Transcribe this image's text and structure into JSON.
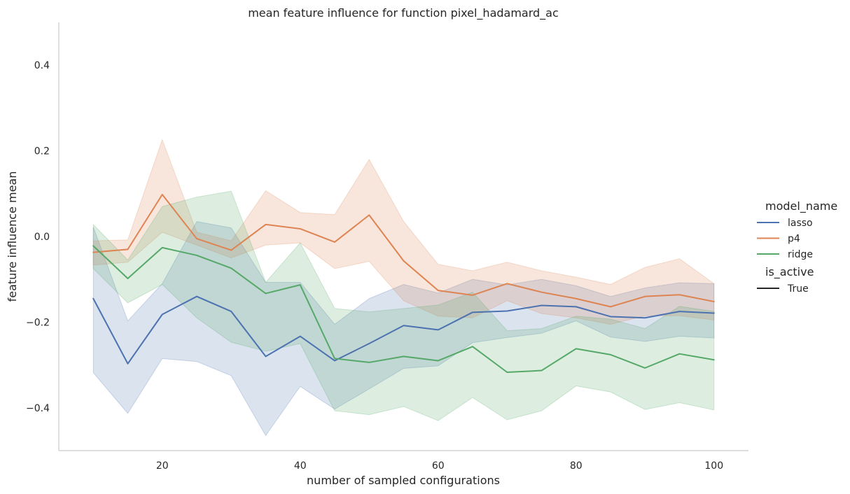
{
  "chart_data": {
    "type": "line",
    "title": "mean feature influence for function pixel_hadamard_ac",
    "xlabel": "number of sampled configurations",
    "ylabel": "feature influence mean",
    "xlim": [
      5,
      105
    ],
    "ylim": [
      -0.5,
      0.5
    ],
    "xticks": [
      20,
      40,
      60,
      80,
      100
    ],
    "yticks": [
      -0.4,
      -0.2,
      0.0,
      0.2,
      0.4
    ],
    "ytick_labels": [
      "−0.4",
      "−0.2",
      "0.0",
      "0.2",
      "0.4"
    ],
    "grid": false,
    "legend": {
      "placement": "right",
      "hue_title": "model_name",
      "style_title": "is_active",
      "style_entry": "True"
    },
    "x": [
      10,
      15,
      20,
      25,
      30,
      35,
      40,
      45,
      50,
      55,
      60,
      65,
      70,
      75,
      80,
      85,
      90,
      95,
      100
    ],
    "series": [
      {
        "name": "lasso",
        "color": "#4c72b0",
        "values": [
          -0.145,
          -0.297,
          -0.182,
          -0.14,
          -0.175,
          -0.28,
          -0.233,
          -0.29,
          -0.25,
          -0.208,
          -0.218,
          -0.177,
          -0.174,
          -0.161,
          -0.164,
          -0.187,
          -0.19,
          -0.175,
          -0.179
        ],
        "ci_low": [
          -0.318,
          -0.413,
          -0.285,
          -0.292,
          -0.325,
          -0.465,
          -0.35,
          -0.403,
          -0.356,
          -0.308,
          -0.302,
          -0.248,
          -0.236,
          -0.226,
          -0.197,
          -0.235,
          -0.245,
          -0.233,
          -0.237
        ],
        "ci_high": [
          0.022,
          -0.197,
          -0.11,
          0.035,
          0.02,
          -0.107,
          -0.107,
          -0.205,
          -0.145,
          -0.112,
          -0.132,
          -0.1,
          -0.113,
          -0.1,
          -0.115,
          -0.14,
          -0.12,
          -0.108,
          -0.11
        ]
      },
      {
        "name": "p4",
        "color": "#dd8452",
        "values": [
          -0.037,
          -0.03,
          0.098,
          -0.005,
          -0.032,
          0.028,
          0.018,
          -0.013,
          0.05,
          -0.057,
          -0.126,
          -0.137,
          -0.11,
          -0.13,
          -0.145,
          -0.164,
          -0.14,
          -0.136,
          -0.152
        ],
        "ci_low": [
          -0.067,
          -0.06,
          0.01,
          -0.02,
          -0.05,
          -0.02,
          -0.015,
          -0.075,
          -0.058,
          -0.15,
          -0.186,
          -0.19,
          -0.15,
          -0.18,
          -0.19,
          -0.205,
          -0.185,
          -0.185,
          -0.195
        ],
        "ci_high": [
          -0.01,
          -0.008,
          0.226,
          0.01,
          -0.01,
          0.107,
          0.056,
          0.051,
          0.18,
          0.035,
          -0.065,
          -0.08,
          -0.06,
          -0.08,
          -0.095,
          -0.112,
          -0.072,
          -0.052,
          -0.11
        ]
      },
      {
        "name": "ridge",
        "color": "#55a868",
        "values": [
          -0.022,
          -0.098,
          -0.026,
          -0.044,
          -0.074,
          -0.133,
          -0.113,
          -0.285,
          -0.294,
          -0.28,
          -0.29,
          -0.257,
          -0.317,
          -0.313,
          -0.262,
          -0.276,
          -0.307,
          -0.274,
          -0.288
        ],
        "ci_low": [
          -0.075,
          -0.155,
          -0.112,
          -0.19,
          -0.247,
          -0.268,
          -0.25,
          -0.407,
          -0.416,
          -0.397,
          -0.43,
          -0.376,
          -0.428,
          -0.407,
          -0.349,
          -0.363,
          -0.404,
          -0.388,
          -0.405
        ],
        "ci_high": [
          0.028,
          -0.055,
          0.07,
          0.092,
          0.106,
          -0.107,
          -0.015,
          -0.168,
          -0.176,
          -0.168,
          -0.16,
          -0.13,
          -0.22,
          -0.215,
          -0.186,
          -0.193,
          -0.215,
          -0.163,
          -0.175
        ]
      }
    ]
  }
}
